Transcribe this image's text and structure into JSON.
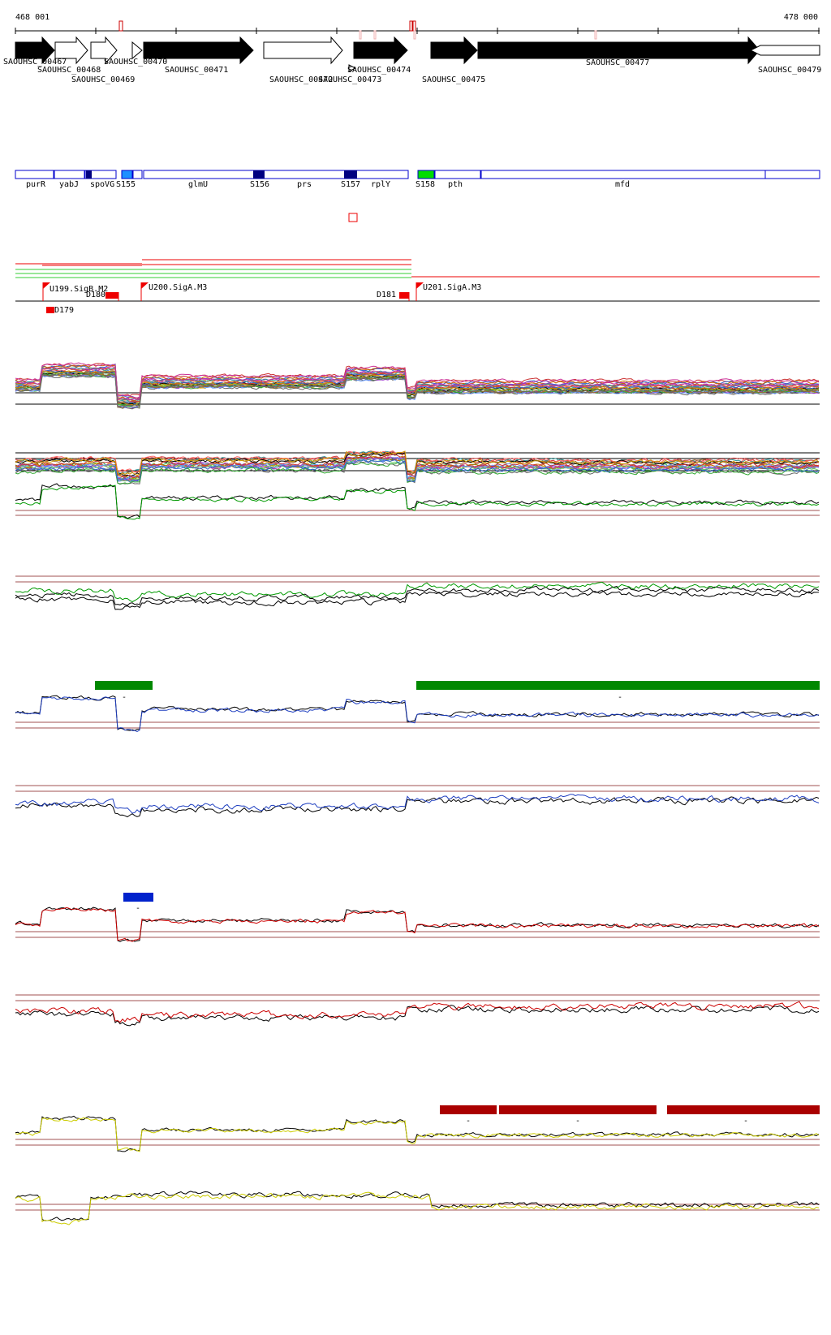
{
  "coords": {
    "start": "468 001",
    "end": "478 000"
  },
  "colors": {
    "black": "#000000",
    "outline_blue": "#0000cc",
    "dark_blue": "#000080",
    "light_blue": "#1e90ff",
    "bright_green": "#00dd00",
    "red": "#ee0000",
    "dark_red": "#aa0000",
    "maroon": "#a05050",
    "green_line": "#009900",
    "blue_line": "#1f3fc0",
    "yellow_line": "#cccc00",
    "green_bar": "#008800",
    "blue_bar": "#0022cc",
    "red_bar": "#aa0000"
  },
  "genes": [
    {
      "id": "SAOUHSC_00467",
      "filled": true
    },
    {
      "id": "SAOUHSC_00468",
      "filled": false
    },
    {
      "id": "SAOUHSC_00469",
      "filled": false
    },
    {
      "id": "SAOUHSC_00470",
      "filled": false
    },
    {
      "id": "SAOUHSC_00471",
      "filled": true
    },
    {
      "id": "SAOUHSC_00472",
      "filled": false
    },
    {
      "id": "SAOUHSC_00473",
      "filled": true
    },
    {
      "id": "SAOUHSC_00474",
      "filled": true
    },
    {
      "id": "SAOUHSC_00475",
      "filled": true
    },
    {
      "id": "SAOUHSC_00477",
      "filled": true
    },
    {
      "id": "SAOUHSC_00479",
      "filled": false
    }
  ],
  "annotations": [
    {
      "name": "purR",
      "fill": "none"
    },
    {
      "name": "yabJ",
      "fill": "none"
    },
    {
      "name": "spoVG",
      "fill": "none"
    },
    {
      "name": "S155",
      "fill": "light"
    },
    {
      "name": "glmU",
      "fill": "none"
    },
    {
      "name": "S156",
      "fill": "dark"
    },
    {
      "name": "prs",
      "fill": "none"
    },
    {
      "name": "S157",
      "fill": "dark"
    },
    {
      "name": "rplY",
      "fill": "none"
    },
    {
      "name": "S158",
      "fill": "green"
    },
    {
      "name": "pth",
      "fill": "none"
    },
    {
      "name": "mfd",
      "fill": "none"
    }
  ],
  "promoters": [
    {
      "label": "U199.SigB.M2"
    },
    {
      "label": "U200.SigA.M3"
    },
    {
      "label": "U201.SigA.M3"
    }
  ],
  "terminators": [
    {
      "label": "D180"
    },
    {
      "label": "D179"
    },
    {
      "label": "D181"
    }
  ],
  "marks": {
    "bar_minus": "-"
  }
}
